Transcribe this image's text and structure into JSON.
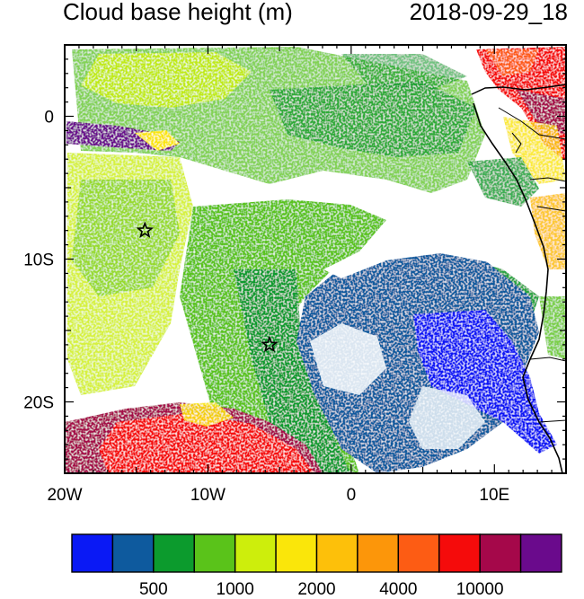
{
  "title_left": "Cloud base height (m)",
  "title_right": "2018-09-29_18",
  "lon_ticks": [
    {
      "value": -20,
      "label": "20W"
    },
    {
      "value": -10,
      "label": "10W"
    },
    {
      "value": 0,
      "label": "0"
    },
    {
      "value": 10,
      "label": "10E"
    }
  ],
  "lat_ticks": [
    {
      "value": 0,
      "label": "0"
    },
    {
      "value": -10,
      "label": "10S"
    },
    {
      "value": -20,
      "label": "20S"
    }
  ],
  "lon_range": [
    -20,
    15
  ],
  "lat_range": [
    -25,
    5
  ],
  "colorbar": {
    "colors": [
      "#0a19f5",
      "#0e5a9e",
      "#0c9b2d",
      "#5ac31a",
      "#cdee0c",
      "#fae60a",
      "#fdc00a",
      "#fc960a",
      "#fd5c14",
      "#f50b0b",
      "#a5084a",
      "#6a0a8c"
    ],
    "labels": [
      {
        "boundary": 2,
        "text": "500"
      },
      {
        "boundary": 4,
        "text": "1000"
      },
      {
        "boundary": 6,
        "text": "2000"
      },
      {
        "boundary": 8,
        "text": "4000"
      },
      {
        "boundary": 10,
        "text": "10000"
      }
    ]
  },
  "markers": [
    {
      "name": "star-marker",
      "lon": -14.4,
      "lat": -8.0
    },
    {
      "name": "star-marker",
      "lon": -5.7,
      "lat": -16.0
    }
  ]
}
